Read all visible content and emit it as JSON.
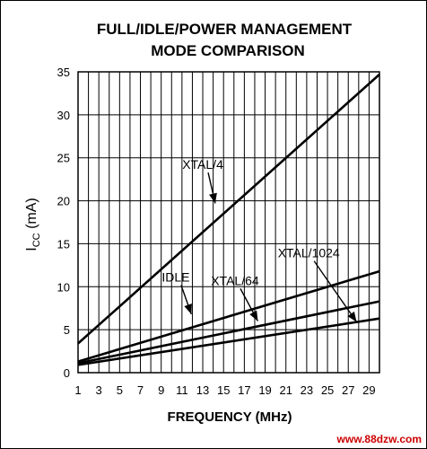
{
  "chart_data": {
    "type": "line",
    "title_line1": "FULL/IDLE/POWER MANAGEMENT",
    "title_line2": "MODE COMPARISON",
    "xlabel": "FREQUENCY (MHz)",
    "ylabel": "ICC (mA)",
    "ylabel_main": "I",
    "ylabel_sub": "CC",
    "ylabel_unit": " (mA)",
    "xlim": [
      1,
      30
    ],
    "ylim": [
      0,
      35
    ],
    "xticks": [
      1,
      3,
      5,
      7,
      9,
      11,
      13,
      15,
      17,
      19,
      21,
      23,
      25,
      27,
      29
    ],
    "yticks": [
      0,
      5,
      10,
      15,
      20,
      25,
      30,
      35
    ],
    "grid": true,
    "series": [
      {
        "name": "XTAL/4",
        "x": [
          1,
          30
        ],
        "y": [
          3.4,
          34.7
        ]
      },
      {
        "name": "IDLE",
        "x": [
          1,
          30
        ],
        "y": [
          1.3,
          11.8
        ]
      },
      {
        "name": "XTAL/64",
        "x": [
          1,
          30
        ],
        "y": [
          1.1,
          8.3
        ]
      },
      {
        "name": "XTAL/1024",
        "x": [
          1,
          30
        ],
        "y": [
          0.9,
          6.3
        ]
      }
    ],
    "annotations": [
      {
        "text": "XTAL/4",
        "x": 13.0,
        "y": 23.7,
        "arrow_to": [
          14.2,
          19.7
        ]
      },
      {
        "text": "IDLE",
        "x": 10.4,
        "y": 10.6,
        "arrow_to": [
          11.9,
          6.8
        ]
      },
      {
        "text": "XTAL/64",
        "x": 16.1,
        "y": 10.2,
        "arrow_to": [
          18.3,
          6.0
        ]
      },
      {
        "text": "XTAL/1024",
        "x": 23.2,
        "y": 13.4,
        "arrow_to": [
          27.8,
          5.9
        ]
      }
    ]
  },
  "watermark": "www.88dzw.com",
  "colors": {
    "line": "#000000",
    "grid": "#000000",
    "watermark": "#cc0000"
  }
}
